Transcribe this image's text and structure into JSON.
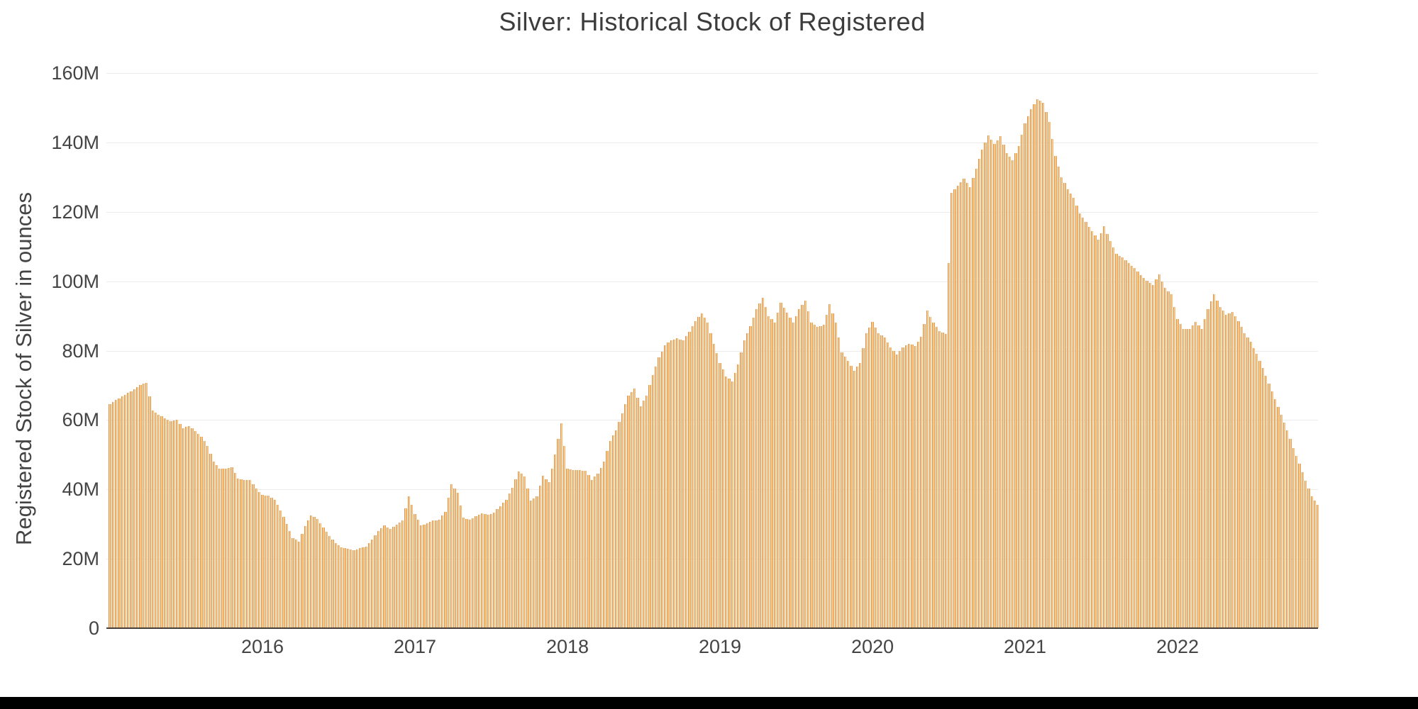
{
  "page": {
    "background_color": "#ffffff",
    "bottom_bar_color": "#000000"
  },
  "chart": {
    "title": "Silver: Historical Stock of Registered",
    "y_axis_title": "Registered Stock of Silver in ounces",
    "y_ticks": [
      "160M",
      "140M",
      "120M",
      "100M",
      "80M",
      "60M",
      "40M",
      "20M",
      "0"
    ],
    "x_ticks": [
      "2016",
      "2017",
      "2018",
      "2019",
      "2020",
      "2021",
      "2022"
    ],
    "colors": {
      "bar_fill": "#f8d5a2",
      "bar_edge": "#de8f3f",
      "bar_edge_right": "#e8a55a",
      "gridline": "#ebebeb",
      "axis_text": "#444444",
      "title_text": "#3c3c3c",
      "baseline": "#474039"
    }
  },
  "chart_data": {
    "type": "bar",
    "title": "Silver: Historical Stock of Registered",
    "xlabel": "",
    "ylabel": "Registered Stock of Silver in ounces",
    "unit": "millions of ounces",
    "grid": true,
    "legend": false,
    "ylim": [
      0,
      165
    ],
    "y_tick_values": [
      0,
      20,
      40,
      60,
      80,
      100,
      120,
      140,
      160
    ],
    "x_tick_values": [
      2016,
      2017,
      2018,
      2019,
      2020,
      2021,
      2022
    ],
    "x_range": [
      2015.0,
      2022.95
    ],
    "x_start": 2015.0,
    "x_step": 0.04,
    "values_millions": [
      64.5,
      65.8,
      66.8,
      67.8,
      68.8,
      70.0,
      70.8,
      62.8,
      61.5,
      60.5,
      59.6,
      60.0,
      57.6,
      58.3,
      56.8,
      55.2,
      52.5,
      48.0,
      46.0,
      45.9,
      46.3,
      43.2,
      42.8,
      42.7,
      40.2,
      38.4,
      38.2,
      37.0,
      34.0,
      30.0,
      26.0,
      25.0,
      29.5,
      32.5,
      31.5,
      29.0,
      26.5,
      24.5,
      23.2,
      22.8,
      22.5,
      23.0,
      23.5,
      25.5,
      28.0,
      29.6,
      28.6,
      29.8,
      31.0,
      38.0,
      33.0,
      29.6,
      30.2,
      31.0,
      31.3,
      33.5,
      41.5,
      39.0,
      31.8,
      31.2,
      32.3,
      33.2,
      32.6,
      33.4,
      35.2,
      37.0,
      40.5,
      45.2,
      43.8,
      36.8,
      38.0,
      44.0,
      42.0,
      50.0,
      59.0,
      46.0,
      45.5,
      45.6,
      45.3,
      42.8,
      44.5,
      48.0,
      54.0,
      57.0,
      62.0,
      67.0,
      69.0,
      64.0,
      67.0,
      73.0,
      78.0,
      81.5,
      83.0,
      83.5,
      83.0,
      85.5,
      88.5,
      90.8,
      88.0,
      82.0,
      76.5,
      72.5,
      71.2,
      76.0,
      83.0,
      87.0,
      92.0,
      95.3,
      90.0,
      88.0,
      93.8,
      91.0,
      88.0,
      92.0,
      94.5,
      88.0,
      86.8,
      87.5,
      93.3,
      88.0,
      79.5,
      77.0,
      74.2,
      76.5,
      85.0,
      88.3,
      85.0,
      83.8,
      81.0,
      78.8,
      81.0,
      82.0,
      81.3,
      84.0,
      91.5,
      88.0,
      85.6,
      84.8,
      125.5,
      127.5,
      129.5,
      127.0,
      132.5,
      138.0,
      142.0,
      139.5,
      141.8,
      137.0,
      134.8,
      139.0,
      145.5,
      149.5,
      152.5,
      151.5,
      146.0,
      136.0,
      130.0,
      126.5,
      124.0,
      119.5,
      117.0,
      114.5,
      112.0,
      115.8,
      111.5,
      107.8,
      106.8,
      105.2,
      103.8,
      101.8,
      100.2,
      99.0,
      102.0,
      98.0,
      96.3,
      89.0,
      86.3,
      86.2,
      88.3,
      86.3,
      92.0,
      96.2,
      92.5,
      90.4,
      91.2,
      88.5,
      85.0,
      82.5,
      79.0,
      75.0,
      70.5,
      66.0,
      61.5,
      57.0,
      52.0,
      47.5,
      42.5,
      38.0,
      35.5
    ]
  }
}
